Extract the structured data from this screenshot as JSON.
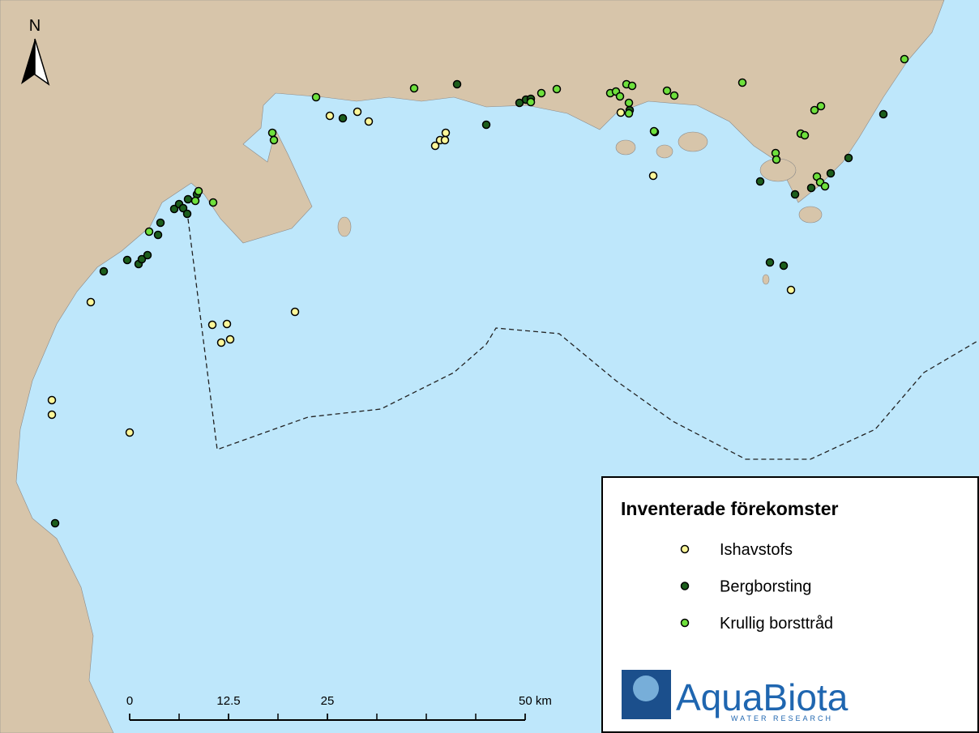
{
  "map": {
    "north_label": "N",
    "legend": {
      "title": "Inventerade förekomster",
      "items": [
        {
          "label": "Ishavstofs",
          "color": "#fdf79a"
        },
        {
          "label": "Bergborsting",
          "color": "#1c5e1c"
        },
        {
          "label": "Krullig borsttråd",
          "color": "#6ee03c"
        }
      ]
    },
    "scale_bar": {
      "ticks": [
        0,
        12.5,
        25,
        {
          "value": 50,
          "label": "50 km"
        }
      ]
    },
    "logo": {
      "name": "AquaBiota",
      "tagline": "WATER RESEARCH"
    }
  }
}
